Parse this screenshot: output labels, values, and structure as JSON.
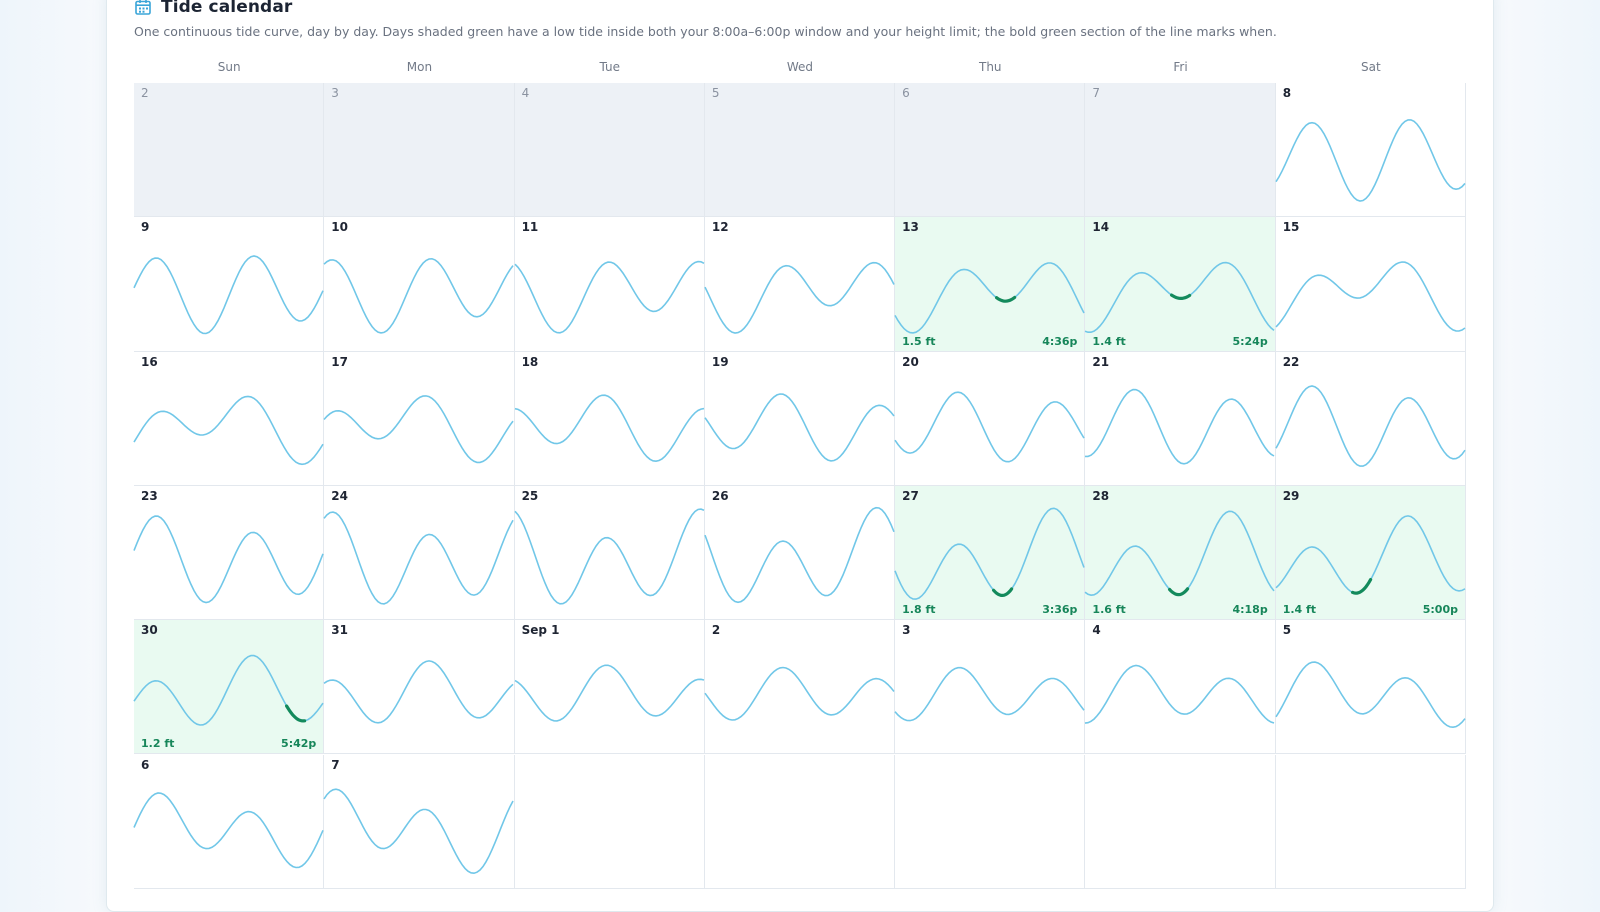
{
  "header": {
    "title": "Tide calendar",
    "subtitle": "One continuous tide curve, day by day. Days shaded green have a low tide inside both your 8:00a–6:00p window and your height limit; the bold green section of the line marks when."
  },
  "weekdays": [
    "Sun",
    "Mon",
    "Tue",
    "Wed",
    "Thu",
    "Fri",
    "Sat"
  ],
  "colors": {
    "curve": "#71c7e8",
    "highlight": "#138a5c",
    "good_bg": "#e9faf1",
    "outside_bg": "#edf1f6"
  },
  "icons": {
    "title": "calendar-icon"
  },
  "weeks": [
    [
      {
        "label": "2",
        "outside": true
      },
      {
        "label": "3",
        "outside": true
      },
      {
        "label": "4",
        "outside": true
      },
      {
        "label": "5",
        "outside": true
      },
      {
        "label": "6",
        "outside": true
      },
      {
        "label": "7",
        "outside": true
      },
      {
        "label": "8",
        "outside": false
      }
    ],
    [
      {
        "label": "9"
      },
      {
        "label": "10"
      },
      {
        "label": "11"
      },
      {
        "label": "12"
      },
      {
        "label": "13",
        "good": true,
        "low_height": "1.5 ft",
        "low_time": "4:36p"
      },
      {
        "label": "14",
        "good": true,
        "low_height": "1.4 ft",
        "low_time": "5:24p"
      },
      {
        "label": "15"
      }
    ],
    [
      {
        "label": "16"
      },
      {
        "label": "17"
      },
      {
        "label": "18"
      },
      {
        "label": "19"
      },
      {
        "label": "20"
      },
      {
        "label": "21"
      },
      {
        "label": "22"
      }
    ],
    [
      {
        "label": "23"
      },
      {
        "label": "24"
      },
      {
        "label": "25"
      },
      {
        "label": "26"
      },
      {
        "label": "27",
        "good": true,
        "low_height": "1.8 ft",
        "low_time": "3:36p"
      },
      {
        "label": "28",
        "good": true,
        "low_height": "1.6 ft",
        "low_time": "4:18p"
      },
      {
        "label": "29",
        "good": true,
        "low_height": "1.4 ft",
        "low_time": "5:00p"
      }
    ],
    [
      {
        "label": "30",
        "good": true,
        "low_height": "1.2 ft",
        "low_time": "5:42p"
      },
      {
        "label": "31"
      },
      {
        "label": "Sep 1"
      },
      {
        "label": "2"
      },
      {
        "label": "3"
      },
      {
        "label": "4"
      },
      {
        "label": "5"
      }
    ],
    [
      {
        "label": "6"
      },
      {
        "label": "7"
      },
      {
        "label": "",
        "empty": true
      },
      {
        "label": "",
        "empty": true
      },
      {
        "label": "",
        "empty": true
      },
      {
        "label": "",
        "empty": true
      },
      {
        "label": "",
        "empty": true
      }
    ]
  ]
}
